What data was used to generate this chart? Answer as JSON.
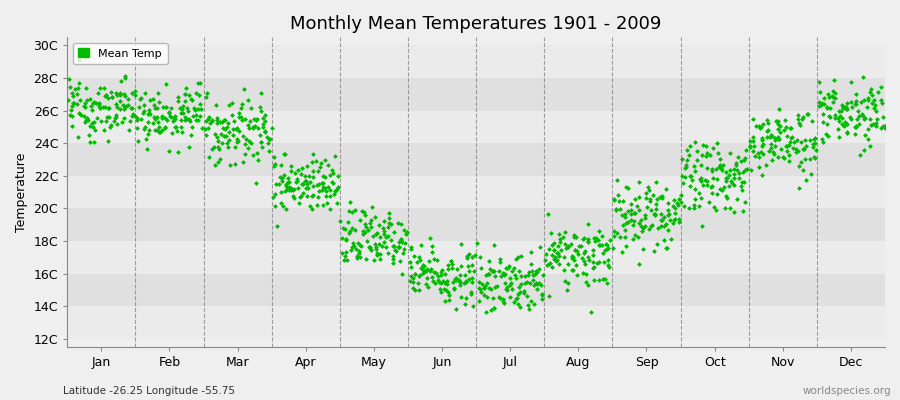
{
  "title": "Monthly Mean Temperatures 1901 - 2009",
  "ylabel": "Temperature",
  "xlabel_labels": [
    "Jan",
    "Feb",
    "Mar",
    "Apr",
    "May",
    "Jun",
    "Jul",
    "Aug",
    "Sep",
    "Oct",
    "Nov",
    "Dec"
  ],
  "subtitle": "Latitude -26.25 Longitude -55.75",
  "watermark": "worldspecies.org",
  "marker_color": "#00BB00",
  "marker": "+",
  "marker_size": 4,
  "legend_label": "Mean Temp",
  "yticks": [
    12,
    14,
    16,
    18,
    20,
    22,
    24,
    26,
    28,
    30
  ],
  "ytick_labels": [
    "12C",
    "14C",
    "16C",
    "18C",
    "20C",
    "22C",
    "24C",
    "26C",
    "28C",
    "30C"
  ],
  "ylim": [
    11.5,
    30.5
  ],
  "background_color": "#EFEFEF",
  "plot_bg_color": "#EFEFEF",
  "grid_color": "#888888",
  "years": 109,
  "monthly_means": [
    26.2,
    25.8,
    24.8,
    21.5,
    18.2,
    16.0,
    15.5,
    17.0,
    19.5,
    22.0,
    24.0,
    25.8
  ],
  "monthly_stds": [
    0.9,
    0.9,
    1.1,
    0.9,
    1.0,
    0.9,
    0.9,
    0.9,
    1.0,
    1.0,
    1.0,
    0.9
  ],
  "band_colors": [
    "#EBEBEB",
    "#E0E0E0"
  ]
}
